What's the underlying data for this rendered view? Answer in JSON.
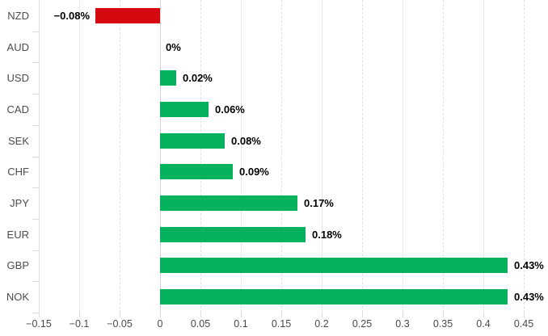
{
  "chart_data": {
    "type": "bar",
    "orientation": "horizontal",
    "title": "",
    "xlabel": "",
    "ylabel": "",
    "unit": "%",
    "categories": [
      "NZD",
      "AUD",
      "USD",
      "CAD",
      "SEK",
      "CHF",
      "JPY",
      "EUR",
      "GBP",
      "NOK"
    ],
    "values": [
      -0.08,
      0,
      0.02,
      0.06,
      0.08,
      0.09,
      0.17,
      0.18,
      0.43,
      0.43
    ],
    "value_labels": [
      "−0.08%",
      "0%",
      "0.02%",
      "0.06%",
      "0.08%",
      "0.09%",
      "0.17%",
      "0.18%",
      "0.43%",
      "0.43%"
    ],
    "x_ticks": [
      -0.15,
      -0.1,
      -0.05,
      0,
      0.05,
      0.1,
      0.15,
      0.2,
      0.25,
      0.3,
      0.35,
      0.4,
      0.45
    ],
    "x_tick_labels": [
      "−0.15",
      "−0.1",
      "−0.05",
      "0",
      "0.05",
      "0.1",
      "0.15",
      "0.2",
      "0.25",
      "0.3",
      "0.35",
      "0.4",
      "0.45"
    ],
    "xlim": [
      -0.15,
      0.48
    ],
    "grid": true,
    "legend": false,
    "colors": {
      "positive": "#07b25e",
      "negative": "#d40a10",
      "grid": "#e9e9ec",
      "zero_line": "#d4d5d9",
      "axis_text": "#4a4a4a",
      "category_text": "#4c4c4c",
      "value_text": "#000000"
    }
  }
}
